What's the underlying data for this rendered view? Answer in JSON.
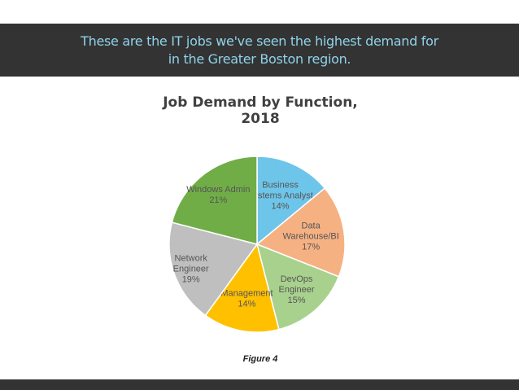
{
  "banner": {
    "line1": "These are the IT jobs we've seen the highest demand for",
    "line2": "in the Greater Boston region."
  },
  "caption": "Figure 4",
  "chart_data": {
    "type": "pie",
    "title_line1": "Job Demand by Function,",
    "title_line2": "2018",
    "slices": [
      {
        "label_lines": [
          "Business",
          "Systems Analyst"
        ],
        "value": 14,
        "value_label": "14%",
        "color": "#6ec5ea"
      },
      {
        "label_lines": [
          "Data",
          "Warehouse/BI"
        ],
        "value": 17,
        "value_label": "17%",
        "color": "#f6b183"
      },
      {
        "label_lines": [
          "DevOps",
          "Engineer"
        ],
        "value": 15,
        "value_label": "15%",
        "color": "#a9d18e"
      },
      {
        "label_lines": [
          "Management"
        ],
        "value": 14,
        "value_label": "14%",
        "color": "#ffc000"
      },
      {
        "label_lines": [
          "Network",
          "Engineer"
        ],
        "value": 19,
        "value_label": "19%",
        "color": "#bfbfbf"
      },
      {
        "label_lines": [
          "Windows Admin"
        ],
        "value": 21,
        "value_label": "21%",
        "color": "#70ad47"
      }
    ]
  }
}
